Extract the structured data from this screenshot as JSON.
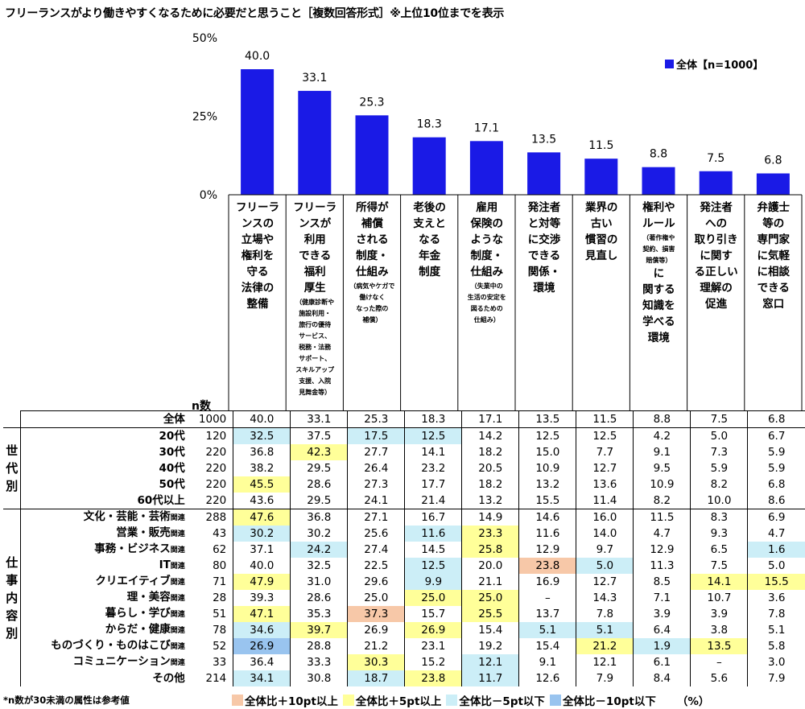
{
  "title": "フリーランスがより働きやすくなるために必要だと思うこと［複数回答形式］※上位10位までを表示",
  "chart_data": {
    "type": "bar",
    "series_name": "全体【n=1000】",
    "bar_color": "#1a1ae6",
    "ylim": [
      0,
      50
    ],
    "yticks": [
      "0%",
      "25%",
      "50%"
    ],
    "categories": [
      {
        "label": "フリーランスの立場や権利を守る法律の整備",
        "lines": [
          "フリーラ",
          "ンスの",
          "立場や",
          "権利を",
          "守る",
          "法律の",
          "整備"
        ],
        "sub": []
      },
      {
        "label": "フリーランスが利用できる福利厚生",
        "lines": [
          "フリーラ",
          "ンスが",
          "利用",
          "できる",
          "福利",
          "厚生"
        ],
        "sub": [
          "（健康診断や",
          "施設利用・",
          "旅行の優待",
          "サービス、",
          "税務・法務",
          "サポート、",
          "スキルアップ",
          "支援、入院",
          "見舞金等）"
        ]
      },
      {
        "label": "所得が補償される制度・仕組み",
        "lines": [
          "所得が",
          "補償",
          "される",
          "制度・",
          "仕組み"
        ],
        "sub": [
          "（病気やケガで",
          "働けなく",
          "なった際の",
          "補償）"
        ]
      },
      {
        "label": "老後の支えとなる年金制度",
        "lines": [
          "老後の",
          "支えと",
          "なる",
          "年金",
          "制度"
        ],
        "sub": []
      },
      {
        "label": "雇用保険のような制度・仕組み",
        "lines": [
          "雇用",
          "保険の",
          "ような",
          "制度・",
          "仕組み"
        ],
        "sub": [
          "（失業中の",
          "生活の安定を",
          "図るための",
          "仕組み）"
        ]
      },
      {
        "label": "発注者と対等に交渉できる関係・環境",
        "lines": [
          "発注者",
          "と対等",
          "に交渉",
          "できる",
          "関係・",
          "環境"
        ],
        "sub": []
      },
      {
        "label": "業界の古い慣習の見直し",
        "lines": [
          "業界の",
          "古い",
          "慣習の",
          "見直し"
        ],
        "sub": []
      },
      {
        "label": "権利やルール（著作権や契約、損害賠償等）に関する知識を学べる環境",
        "lines": [
          "権利や",
          "ルール"
        ],
        "sub": [
          "（著作権や",
          "契約、損害",
          "賠償等）"
        ],
        "lines_after": [
          "に",
          "関する",
          "知識を",
          "学べる",
          "環境"
        ]
      },
      {
        "label": "発注者への取り引きに関する正しい理解の促進",
        "lines": [
          "発注者",
          "への",
          "取り引き",
          "に関す",
          "る正しい",
          "理解の",
          "促進"
        ],
        "sub": []
      },
      {
        "label": "弁護士等の専門家に気軽に相談できる窓口",
        "lines": [
          "弁護士",
          "等の",
          "専門家",
          "に気軽",
          "に相談",
          "できる",
          "窓口"
        ],
        "sub": []
      }
    ],
    "values": [
      40.0,
      33.1,
      25.3,
      18.3,
      17.1,
      13.5,
      11.5,
      8.8,
      7.5,
      6.8
    ],
    "value_labels": [
      "40.0",
      "33.1",
      "25.3",
      "18.3",
      "17.1",
      "13.5",
      "11.5",
      "8.8",
      "7.5",
      "6.8"
    ]
  },
  "table": {
    "n_header": "n数",
    "groups": [
      {
        "name": "",
        "rows": [
          {
            "label": "全体",
            "suffix": "",
            "n": "1000",
            "values": [
              "40.0",
              "33.1",
              "25.3",
              "18.3",
              "17.1",
              "13.5",
              "11.5",
              "8.8",
              "7.5",
              "6.8"
            ],
            "hl": [
              "",
              "",
              "",
              "",
              "",
              "",
              "",
              "",
              "",
              ""
            ]
          }
        ]
      },
      {
        "name": "世代別",
        "rows": [
          {
            "label": "20代",
            "suffix": "",
            "n": "120",
            "values": [
              "32.5",
              "37.5",
              "17.5",
              "12.5",
              "14.2",
              "12.5",
              "12.5",
              "4.2",
              "5.0",
              "6.7"
            ],
            "hl": [
              "c",
              "",
              "c",
              "c",
              "",
              "",
              "",
              "",
              "",
              ""
            ]
          },
          {
            "label": "30代",
            "suffix": "",
            "n": "220",
            "values": [
              "36.8",
              "42.3",
              "27.7",
              "14.1",
              "18.2",
              "15.0",
              "7.7",
              "9.1",
              "7.3",
              "5.9"
            ],
            "hl": [
              "",
              "y",
              "",
              "",
              "",
              "",
              "",
              "",
              "",
              ""
            ]
          },
          {
            "label": "40代",
            "suffix": "",
            "n": "220",
            "values": [
              "38.2",
              "29.5",
              "26.4",
              "23.2",
              "20.5",
              "10.9",
              "12.7",
              "9.5",
              "5.9",
              "5.9"
            ],
            "hl": [
              "",
              "",
              "",
              "",
              "",
              "",
              "",
              "",
              "",
              ""
            ]
          },
          {
            "label": "50代",
            "suffix": "",
            "n": "220",
            "values": [
              "45.5",
              "28.6",
              "27.3",
              "17.7",
              "18.2",
              "13.2",
              "13.6",
              "10.9",
              "8.2",
              "6.8"
            ],
            "hl": [
              "y",
              "",
              "",
              "",
              "",
              "",
              "",
              "",
              "",
              ""
            ]
          },
          {
            "label": "60代以上",
            "suffix": "",
            "n": "220",
            "values": [
              "43.6",
              "29.5",
              "24.1",
              "21.4",
              "13.2",
              "15.5",
              "11.4",
              "8.2",
              "10.0",
              "8.6"
            ],
            "hl": [
              "",
              "",
              "",
              "",
              "",
              "",
              "",
              "",
              "",
              ""
            ]
          }
        ]
      },
      {
        "name": "仕事内容別",
        "rows": [
          {
            "label": "文化・芸能・芸術",
            "suffix": "関連",
            "n": "288",
            "values": [
              "47.6",
              "36.8",
              "27.1",
              "16.7",
              "14.9",
              "14.6",
              "16.0",
              "11.5",
              "8.3",
              "6.9"
            ],
            "hl": [
              "y",
              "",
              "",
              "",
              "",
              "",
              "",
              "",
              "",
              ""
            ]
          },
          {
            "label": "営業・販売",
            "suffix": "関連",
            "n": "43",
            "values": [
              "30.2",
              "30.2",
              "25.6",
              "11.6",
              "23.3",
              "11.6",
              "14.0",
              "4.7",
              "9.3",
              "4.7"
            ],
            "hl": [
              "c",
              "",
              "",
              "c",
              "y",
              "",
              "",
              "",
              "",
              ""
            ]
          },
          {
            "label": "事務・ビジネス",
            "suffix": "関連",
            "n": "62",
            "values": [
              "37.1",
              "24.2",
              "27.4",
              "14.5",
              "25.8",
              "12.9",
              "9.7",
              "12.9",
              "6.5",
              "1.6"
            ],
            "hl": [
              "",
              "c",
              "",
              "",
              "y",
              "",
              "",
              "",
              "",
              "c"
            ]
          },
          {
            "label": "IT",
            "suffix": "関連",
            "n": "80",
            "values": [
              "40.0",
              "32.5",
              "22.5",
              "12.5",
              "20.0",
              "23.8",
              "5.0",
              "11.3",
              "7.5",
              "5.0"
            ],
            "hl": [
              "",
              "",
              "",
              "c",
              "",
              "o",
              "c",
              "",
              "",
              ""
            ]
          },
          {
            "label": "クリエイティブ",
            "suffix": "関連",
            "n": "71",
            "values": [
              "47.9",
              "31.0",
              "29.6",
              "9.9",
              "21.1",
              "16.9",
              "12.7",
              "8.5",
              "14.1",
              "15.5"
            ],
            "hl": [
              "y",
              "",
              "",
              "c",
              "",
              "",
              "",
              "",
              "y",
              "y"
            ]
          },
          {
            "label": "理・美容",
            "suffix": "関連",
            "n": "28",
            "values": [
              "39.3",
              "28.6",
              "25.0",
              "25.0",
              "25.0",
              "–",
              "14.3",
              "7.1",
              "10.7",
              "3.6"
            ],
            "hl": [
              "",
              "",
              "",
              "y",
              "y",
              "",
              "",
              "",
              "",
              ""
            ]
          },
          {
            "label": "暮らし・学び",
            "suffix": "関連",
            "n": "51",
            "values": [
              "47.1",
              "35.3",
              "37.3",
              "15.7",
              "25.5",
              "13.7",
              "7.8",
              "3.9",
              "3.9",
              "7.8"
            ],
            "hl": [
              "y",
              "",
              "o",
              "",
              "y",
              "",
              "",
              "",
              "",
              ""
            ]
          },
          {
            "label": "からだ・健康",
            "suffix": "関連",
            "n": "78",
            "values": [
              "34.6",
              "39.7",
              "26.9",
              "26.9",
              "15.4",
              "5.1",
              "5.1",
              "6.4",
              "3.8",
              "5.1"
            ],
            "hl": [
              "c",
              "y",
              "",
              "y",
              "",
              "c",
              "c",
              "",
              "",
              ""
            ]
          },
          {
            "label": "ものづくり・ものはこび",
            "suffix": "関連",
            "n": "52",
            "values": [
              "26.9",
              "28.8",
              "21.2",
              "23.1",
              "19.2",
              "15.4",
              "21.2",
              "1.9",
              "13.5",
              "5.8"
            ],
            "hl": [
              "b",
              "",
              "",
              "",
              "",
              "",
              "y",
              "c",
              "y",
              ""
            ]
          },
          {
            "label": "コミュニケーション",
            "suffix": "関連",
            "n": "33",
            "values": [
              "36.4",
              "33.3",
              "30.3",
              "15.2",
              "12.1",
              "9.1",
              "12.1",
              "6.1",
              "–",
              "3.0"
            ],
            "hl": [
              "",
              "",
              "y",
              "",
              "c",
              "",
              "",
              "",
              "",
              ""
            ]
          },
          {
            "label": "その他",
            "suffix": "",
            "n": "214",
            "values": [
              "34.1",
              "30.8",
              "18.7",
              "23.8",
              "11.7",
              "12.6",
              "7.9",
              "8.4",
              "5.6",
              "7.9"
            ],
            "hl": [
              "c",
              "",
              "c",
              "y",
              "c",
              "",
              "",
              "",
              "",
              ""
            ]
          }
        ]
      }
    ]
  },
  "legend": [
    {
      "label": "全体比＋10pt以上",
      "color": "#f7c8a8"
    },
    {
      "label": "全体比＋5pt以上",
      "color": "#ffff99"
    },
    {
      "label": "全体比－5pt以下",
      "color": "#cceef7"
    },
    {
      "label": "全体比－10pt以下",
      "color": "#99c4ef"
    }
  ],
  "unit": "（%）",
  "footnote": "*n数が30未満の属性は参考値"
}
